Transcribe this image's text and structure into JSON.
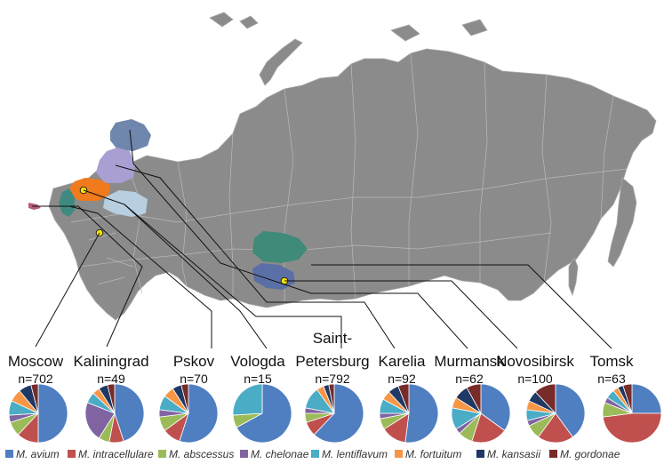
{
  "colors": {
    "map_fill": "#8c8b8b",
    "map_border": "#bdbdbd",
    "murmansk": "#6f86ad",
    "karelia": "#a99fd2",
    "saint_petersburg": "#f07a1c",
    "vologda": "#b7cfe0",
    "pskov": "#3f8a80",
    "kaliningrad": "#b65d75",
    "novosibirsk": "#3f8a78",
    "tomsk_region": "#5a6fa5",
    "city_marker": "#f5e500"
  },
  "regions": [
    {
      "id": "moscow",
      "label": "Moscow",
      "n": "n=702"
    },
    {
      "id": "kaliningrad",
      "label": "Kaliningrad",
      "n": "n=49"
    },
    {
      "id": "pskov",
      "label": "Pskov",
      "n": "n=70"
    },
    {
      "id": "vologda",
      "label": "Vologda",
      "n": "n=15"
    },
    {
      "id": "saint-petersburg",
      "label": "Saint-",
      "label2": "Petersburg",
      "n": "n=792"
    },
    {
      "id": "karelia",
      "label": "Karelia",
      "n": "n=92"
    },
    {
      "id": "murmansk",
      "label": "Murmansk",
      "n": "n=62"
    },
    {
      "id": "novosibirsk",
      "label": "Novosibirsk",
      "n": "n=100"
    },
    {
      "id": "tomsk",
      "label": "Tomsk",
      "n": "n=63"
    }
  ],
  "species": [
    {
      "name": "M. avium",
      "color": "#4f7fc1"
    },
    {
      "name": "M. intracellulare",
      "color": "#c0504d"
    },
    {
      "name": "M. abscessus",
      "color": "#9bbb59"
    },
    {
      "name": "M. chelonae",
      "color": "#8064a2"
    },
    {
      "name": "M. lentiflavum",
      "color": "#4bacc6"
    },
    {
      "name": "M. fortuitum",
      "color": "#f79646"
    },
    {
      "name": "M. kansasii",
      "color": "#1f3864"
    },
    {
      "name": "M. gordonae",
      "color": "#772c2a"
    }
  ],
  "pie_data": [
    {
      "region": "Moscow",
      "shares": [
        50,
        12,
        8,
        4,
        8,
        7,
        7,
        4
      ]
    },
    {
      "region": "Kaliningrad",
      "shares": [
        45,
        8,
        6,
        22,
        6,
        4,
        5,
        4
      ]
    },
    {
      "region": "Pskov",
      "shares": [
        55,
        10,
        8,
        4,
        8,
        6,
        5,
        4
      ]
    },
    {
      "region": "Vologda",
      "shares": [
        67,
        0,
        7,
        0,
        26,
        0,
        0,
        0
      ]
    },
    {
      "region": "Saint-Petersburg",
      "shares": [
        62,
        8,
        5,
        3,
        12,
        4,
        3,
        3
      ]
    },
    {
      "region": "Karelia",
      "shares": [
        52,
        14,
        6,
        3,
        8,
        5,
        6,
        6
      ]
    },
    {
      "region": "Murmansk",
      "shares": [
        35,
        20,
        8,
        3,
        12,
        6,
        8,
        8
      ]
    },
    {
      "region": "Novosibirsk",
      "shares": [
        40,
        20,
        8,
        3,
        6,
        5,
        6,
        12
      ]
    },
    {
      "region": "Tomsk",
      "shares": [
        25,
        48,
        8,
        3,
        5,
        3,
        3,
        5
      ]
    }
  ]
}
